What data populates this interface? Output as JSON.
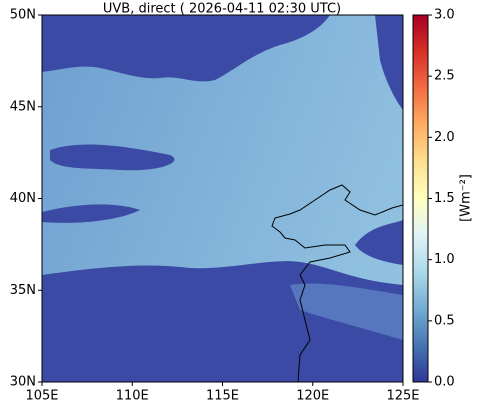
{
  "title": "UVB, direct ( 2026-04-11 02:30 UTC)",
  "map": {
    "xlim": [
      105,
      125
    ],
    "xticks": [
      {
        "value": 105,
        "label": "105E"
      },
      {
        "value": 110,
        "label": "110E"
      },
      {
        "value": 115,
        "label": "115E"
      },
      {
        "value": 120,
        "label": "120E"
      },
      {
        "value": 125,
        "label": "125E"
      }
    ],
    "ylim": [
      30,
      50
    ],
    "yticks": [
      {
        "value": 30,
        "label": "30N"
      },
      {
        "value": 35,
        "label": "35N"
      },
      {
        "value": 40,
        "label": "40N"
      },
      {
        "value": 45,
        "label": "45N"
      },
      {
        "value": 50,
        "label": "50N"
      }
    ]
  },
  "colorbar": {
    "label": "[Wm⁻²]",
    "lim": [
      0,
      3
    ],
    "ticks": [
      {
        "value": 0,
        "label": "0.0"
      },
      {
        "value": 0.5,
        "label": "0.5"
      },
      {
        "value": 1,
        "label": "1.0"
      },
      {
        "value": 1.5,
        "label": "1.5"
      },
      {
        "value": 2,
        "label": "2.0"
      },
      {
        "value": 2.5,
        "label": "2.5"
      },
      {
        "value": 3,
        "label": "3.0"
      }
    ]
  }
}
